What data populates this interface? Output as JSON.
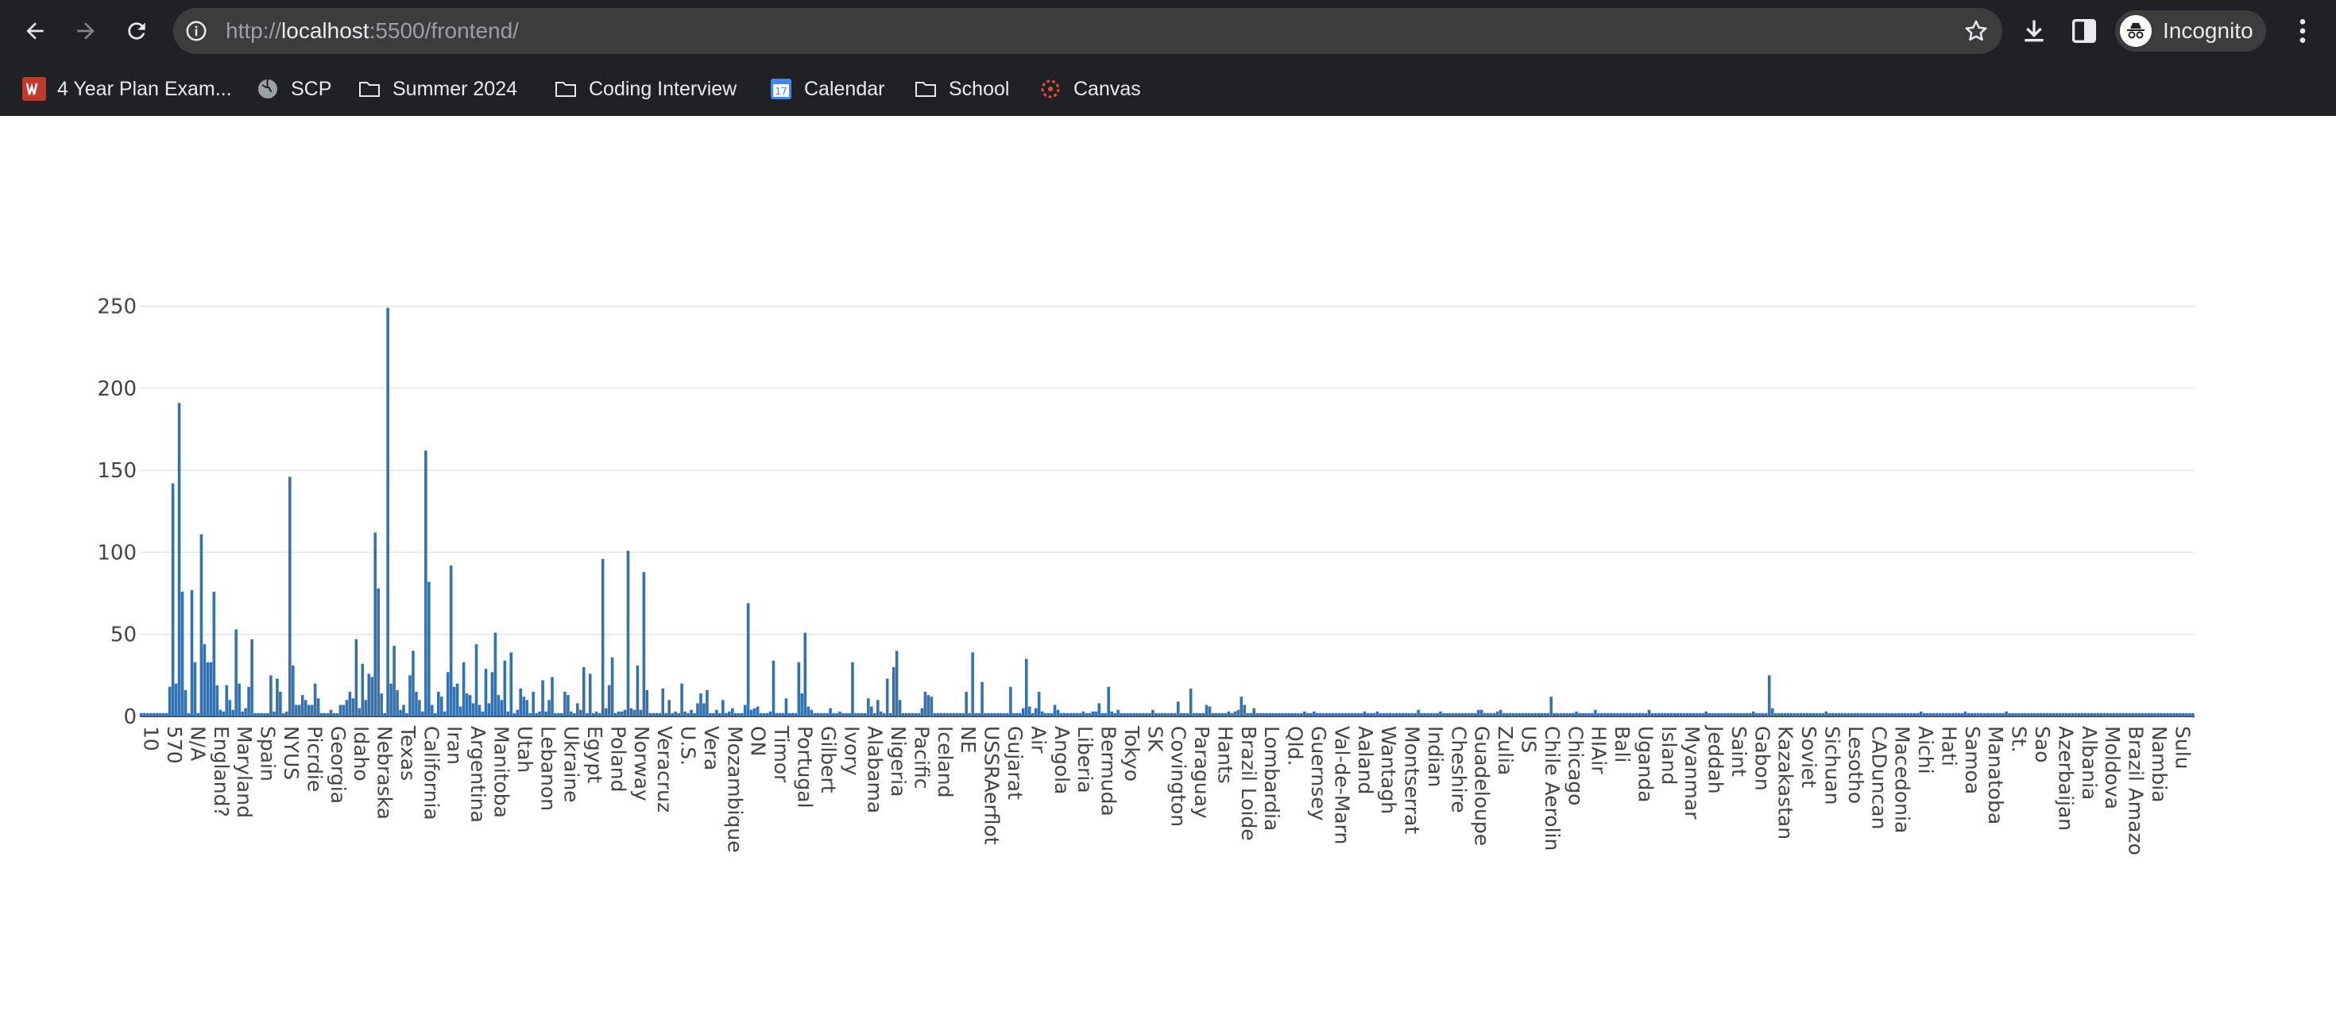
{
  "browser": {
    "url_prefix": "http://",
    "url_host": "localhost",
    "url_rest": ":5500/frontend/",
    "profile_label": "Incognito"
  },
  "bookmarks": [
    {
      "label": "4 Year Plan Exam...",
      "icon": "w-logo-icon"
    },
    {
      "label": "SCP",
      "icon": "globe-icon"
    },
    {
      "label": "Summer 2024",
      "icon": "folder-icon"
    },
    {
      "label": "Coding Interview",
      "icon": "folder-icon"
    },
    {
      "label": "Calendar",
      "icon": "calendar-icon"
    },
    {
      "label": "School",
      "icon": "folder-icon"
    },
    {
      "label": "Canvas",
      "icon": "canvas-logo-icon"
    }
  ],
  "colors": {
    "bar": "#3471ae",
    "grid": "#e6e6e6",
    "chrome": "#202124",
    "axis_text": "#444444"
  },
  "chart_data": {
    "type": "bar",
    "ylim": [
      0,
      260
    ],
    "y_ticks": [
      "0",
      "50",
      "100",
      "150",
      "200",
      "250"
    ],
    "x_tick_labels": [
      "10",
      "570",
      "N/A",
      "England?",
      "Maryland",
      "Spain",
      "NYUS",
      "Picrdie",
      "Georgia",
      "Idaho",
      "Nebraska",
      "Texas",
      "California",
      "Iran",
      "Argentina",
      "Manitoba",
      "Utah",
      "Lebanon",
      "Ukraine",
      "Egypt",
      "Poland",
      "Norway",
      "Veracruz",
      "U.S.",
      "Vera",
      "Mozambique",
      "ON",
      "Timor",
      "Portugal",
      "Gilbert",
      "Ivory",
      "Alabama",
      "Nigeria",
      "Pacific",
      "Iceland",
      "NE",
      "USSRAerflot",
      "Gujarat",
      "Air",
      "Angola",
      "Liberia",
      "Bermuda",
      "Tokyo",
      "SK",
      "Covington",
      "Paraguay",
      "Hants",
      "Brazil Loide",
      "Lombardia",
      "Qld.",
      "Guernsey",
      "Val-de-Marn",
      "Aaland",
      "Wantagh",
      "Montserrat",
      "Indian",
      "Cheshire",
      "Guadeloupe",
      "Zulia",
      "US",
      "Chile Aerolin",
      "Chicago",
      "HIAir",
      "Bali",
      "Uganda",
      "Island",
      "Myanmar",
      "Jeddah",
      "Saint",
      "Gabon",
      "Kazakastan",
      "Soviet",
      "Sichuan",
      "Lesotho",
      "CADuncan",
      "Macedonia",
      "Aichi",
      "Hati",
      "Samoa",
      "Manatoba",
      "St.",
      "Sao",
      "Azerbaijan",
      "Albania",
      "Moldova",
      "Brazil Amazo",
      "Nambia",
      "Sulu"
    ],
    "values": [
      2,
      2,
      2,
      2,
      2,
      2,
      2,
      2,
      2,
      18,
      142,
      20,
      191,
      76,
      16,
      2,
      77,
      33,
      2,
      111,
      44,
      33,
      33,
      76,
      19,
      4,
      3,
      19,
      10,
      4,
      53,
      20,
      3,
      5,
      18,
      47,
      2,
      2,
      2,
      2,
      2,
      25,
      3,
      23,
      15,
      2,
      3,
      146,
      31,
      7,
      7,
      13,
      10,
      7,
      7,
      20,
      11,
      2,
      2,
      2,
      4,
      2,
      2,
      7,
      7,
      10,
      15,
      11,
      47,
      5,
      32,
      10,
      26,
      24,
      112,
      78,
      14,
      2,
      249,
      20,
      43,
      16,
      4,
      7,
      2,
      25,
      40,
      15,
      10,
      3,
      162,
      82,
      7,
      2,
      15,
      12,
      3,
      27,
      92,
      18,
      20,
      6,
      33,
      14,
      13,
      8,
      44,
      7,
      3,
      29,
      8,
      27,
      51,
      13,
      10,
      34,
      3,
      39,
      2,
      4,
      17,
      12,
      10,
      2,
      15,
      2,
      3,
      22,
      3,
      10,
      24,
      2,
      2,
      2,
      15,
      13,
      3,
      2,
      8,
      4,
      30,
      2,
      26,
      2,
      3,
      2,
      96,
      5,
      19,
      36,
      2,
      3,
      3,
      4,
      101,
      5,
      4,
      31,
      4,
      88,
      16,
      2,
      2,
      2,
      2,
      17,
      2,
      10,
      2,
      3,
      2,
      20,
      3,
      2,
      4,
      2,
      8,
      14,
      8,
      16,
      2,
      2,
      4,
      2,
      10,
      2,
      3,
      5,
      2,
      2,
      2,
      7,
      69,
      4,
      5,
      6,
      2,
      2,
      2,
      3,
      34,
      2,
      2,
      2,
      11,
      2,
      2,
      2,
      33,
      14,
      51,
      6,
      4,
      2,
      2,
      2,
      2,
      2,
      5,
      2,
      2,
      3,
      2,
      2,
      2,
      33,
      2,
      2,
      2,
      2,
      11,
      6,
      2,
      10,
      3,
      2,
      23,
      2,
      30,
      40,
      10,
      2,
      2,
      2,
      2,
      2,
      2,
      5,
      15,
      13,
      12,
      2,
      2,
      2,
      2,
      2,
      2,
      2,
      2,
      2,
      2,
      15,
      2,
      39,
      2,
      2,
      21,
      2,
      2,
      2,
      2,
      2,
      2,
      2,
      2,
      18,
      2,
      2,
      2,
      5,
      35,
      6,
      2,
      5,
      15,
      3,
      2,
      2,
      2,
      7,
      4,
      2,
      2,
      2,
      2,
      2,
      2,
      2,
      3,
      2,
      2,
      3,
      3,
      8,
      2,
      2,
      18,
      3,
      2,
      4,
      2,
      2,
      2,
      2,
      2,
      2,
      2,
      2,
      2,
      2,
      4,
      2,
      2,
      2,
      2,
      2,
      2,
      2,
      9,
      2,
      2,
      2,
      17,
      2,
      2,
      2,
      2,
      7,
      6,
      2,
      2,
      2,
      2,
      2,
      3,
      2,
      3,
      4,
      12,
      7,
      2,
      2,
      5,
      2,
      2,
      2,
      2,
      2,
      2,
      2,
      2,
      2,
      2,
      2,
      2,
      2,
      2,
      2,
      3,
      2,
      2,
      3,
      2,
      2,
      2,
      2,
      2,
      2,
      2,
      2,
      2,
      2,
      2,
      2,
      2,
      2,
      2,
      3,
      2,
      2,
      2,
      3,
      2,
      2,
      2,
      2,
      2,
      2,
      2,
      2,
      2,
      2,
      2,
      2,
      4,
      2,
      2,
      2,
      2,
      2,
      2,
      3,
      2,
      2,
      2,
      2,
      2,
      2,
      2,
      2,
      2,
      2,
      2,
      4,
      4,
      2,
      2,
      2,
      2,
      3,
      4,
      2,
      2,
      2,
      2,
      2,
      2,
      2,
      2,
      2,
      2,
      2,
      2,
      2,
      2,
      2,
      12,
      2,
      2,
      2,
      2,
      2,
      2,
      2,
      3,
      2,
      2,
      2,
      2,
      2,
      4,
      2,
      2,
      2,
      2,
      2,
      2,
      2,
      2,
      2,
      2,
      2,
      2,
      2,
      2,
      2,
      2,
      4,
      2,
      2,
      2,
      2,
      2,
      2,
      2,
      2,
      2,
      2,
      2,
      2,
      2,
      2,
      2,
      2,
      2,
      3,
      2,
      2,
      2,
      2,
      2,
      2,
      2,
      2,
      2,
      2,
      2,
      2,
      2,
      2,
      3,
      2,
      2,
      2,
      2,
      25,
      5,
      2,
      2,
      2,
      2,
      2,
      2,
      2,
      2,
      2,
      2,
      2,
      2,
      2,
      2,
      2,
      2,
      3,
      2,
      2,
      2,
      2,
      2,
      2,
      2,
      2,
      2,
      2,
      2,
      2,
      2,
      2,
      2,
      2,
      2,
      2,
      2,
      2,
      2,
      2,
      2,
      2,
      2,
      2,
      2,
      2,
      2,
      3,
      2,
      2,
      2,
      2,
      2,
      2,
      2,
      2,
      2,
      2,
      2,
      2,
      2,
      3,
      2,
      2,
      2,
      2,
      2,
      2,
      2,
      2,
      2,
      2,
      2,
      2,
      3,
      2,
      2,
      2,
      2,
      2,
      2,
      2,
      2,
      2,
      2,
      2,
      2,
      2,
      2,
      2,
      2,
      2,
      2,
      2,
      2,
      2,
      2,
      2,
      2,
      2,
      2,
      2,
      2,
      2,
      2,
      2,
      2,
      2,
      2,
      2,
      2,
      2,
      2,
      2,
      2,
      2,
      2,
      2,
      2,
      2,
      2,
      2,
      2,
      2,
      2,
      2,
      2,
      2,
      2,
      2,
      2,
      2,
      2,
      2
    ]
  }
}
